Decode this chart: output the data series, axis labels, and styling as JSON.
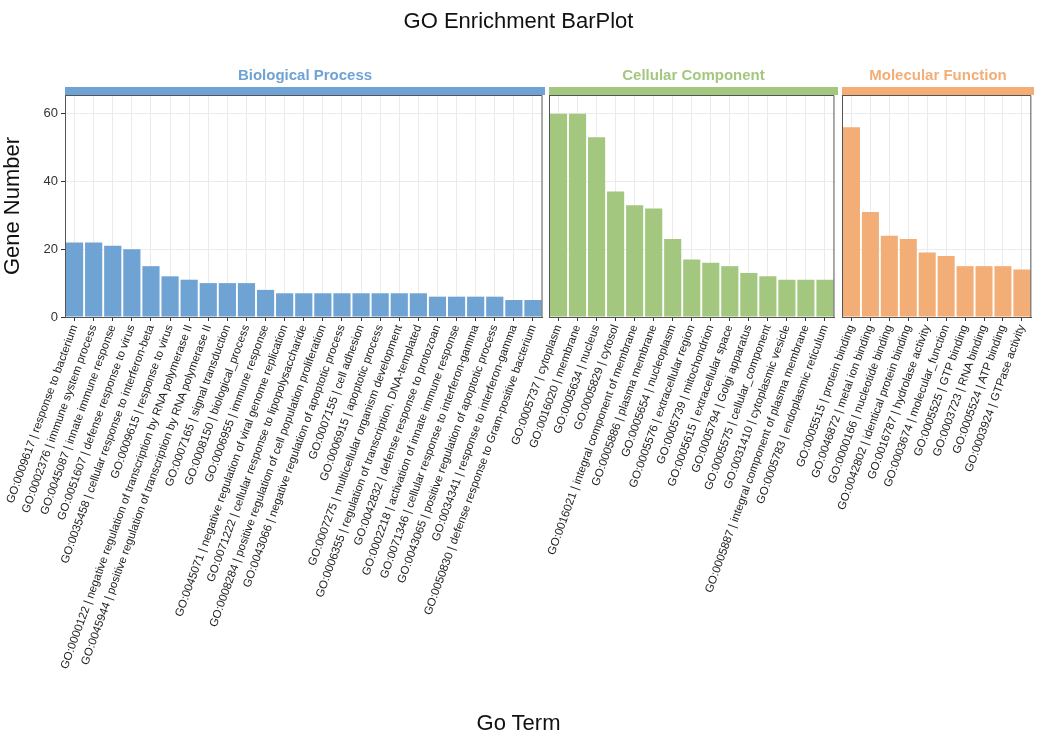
{
  "chart_data": [
    {
      "type": "bar",
      "title": "Biological Process",
      "ylabel": "Gene Number",
      "annotations": [
        "GO Enrichment BarPlot"
      ],
      "categories": [
        "GO:0009617 | response to bacterium",
        "GO:0002376 | immune system process",
        "GO:0045087 | innate immune response",
        "GO:0051607 | defense response to virus",
        "GO:0035458 | cellular response to interferon-beta",
        "GO:0009615 | response to virus",
        "GO:0000122 | negative regulation of transcription by RNA polymerase II",
        "GO:0045944 | positive regulation of transcription by RNA polymerase II",
        "GO:0007165 | signal transduction",
        "GO:0008150 | biological_process",
        "GO:0006955 | immune response",
        "GO:0045071 | negative regulation of viral genome replication",
        "GO:0071222 | cellular response to lipopolysaccharide",
        "GO:0008284 | positive regulation of cell population proliferation",
        "GO:0043066 | negative regulation of apoptotic process",
        "GO:0007155 | cell adhesion",
        "GO:0006915 | apoptotic process",
        "GO:0007275 | multicellular organism development",
        "GO:0006355 | regulation of transcription, DNA-templated",
        "GO:0042832 | defense response to protozoan",
        "GO:0002218 | activation of innate immune response",
        "GO:0071346 | cellular response to interferon-gamma",
        "GO:0043065 | positive regulation of apoptotic process",
        "GO:0034341 | response to interferon-gamma",
        "GO:0050830 | defense response to Gram-positive bacterium"
      ],
      "values": [
        22,
        22,
        21,
        20,
        15,
        12,
        11,
        10,
        10,
        10,
        8,
        7,
        7,
        7,
        7,
        7,
        7,
        7,
        7,
        6,
        6,
        6,
        6,
        5,
        5
      ],
      "color": "#6fa3d4",
      "ylim": [
        0,
        65.5
      ],
      "yticks": [
        0,
        20,
        40,
        60
      ],
      "grid": true
    },
    {
      "type": "bar",
      "title": "Cellular Component",
      "xlabel": "Go Term",
      "categories": [
        "GO:0005737 | cytoplasm",
        "GO:0016020 | membrane",
        "GO:0005634 | nucleus",
        "GO:0005829 | cytosol",
        "GO:0016021 | integral component of membrane",
        "GO:0005886 | plasma membrane",
        "GO:0005654 | nucleoplasm",
        "GO:0005576 | extracellular region",
        "GO:0005739 | mitochondrion",
        "GO:0005615 | extracellular space",
        "GO:0005794 | Golgi apparatus",
        "GO:0005575 | cellular_component",
        "GO:0031410 | cytoplasmic vesicle",
        "GO:0005887 | integral component of plasma membrane",
        "GO:0005783 | endoplasmic reticulum"
      ],
      "values": [
        60,
        60,
        53,
        37,
        33,
        32,
        23,
        17,
        16,
        15,
        13,
        12,
        11,
        11,
        11
      ],
      "color": "#a3c77f",
      "ylim": [
        0,
        65.5
      ],
      "yticks": [
        0,
        20,
        40,
        60
      ],
      "grid": true,
      "tick_labels": "x"
    },
    {
      "type": "bar",
      "title": "Molecular Function",
      "categories": [
        "GO:0005515 | protein binding",
        "GO:0046872 | metal ion binding",
        "GO:0000166 | nucleotide binding",
        "GO:0042802 | identical protein binding",
        "GO:0016787 | hydrolase activity",
        "GO:0003674 | molecular_function",
        "GO:0005525 | GTP binding",
        "GO:0003723 | RNA binding",
        "GO:0005524 | ATP binding",
        "GO:0003924 | GTPase activity"
      ],
      "values": [
        56,
        31,
        24,
        23,
        19,
        18,
        15,
        15,
        15,
        14
      ],
      "color": "#f2ae76",
      "ylim": [
        0,
        65.5
      ],
      "yticks": [
        0,
        20,
        40,
        60
      ],
      "grid": true,
      "tick_labels": "x"
    }
  ]
}
